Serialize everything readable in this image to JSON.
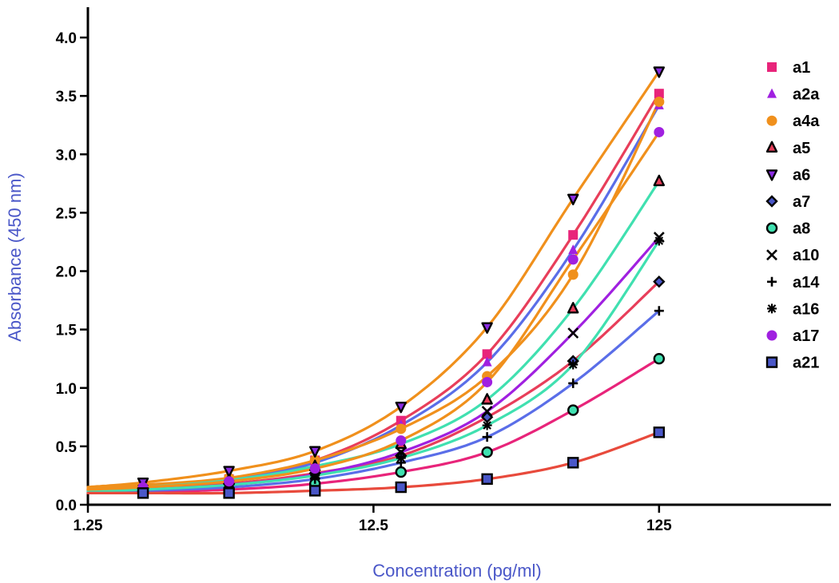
{
  "chart_data": {
    "type": "line",
    "xlabel": "Concentration (pg/ml)",
    "ylabel": "Absorbance (450 nm)",
    "x_scale": "log",
    "xlim": [
      1.25,
      500
    ],
    "ylim": [
      0,
      4.0
    ],
    "x_ticks": [
      1.25,
      12.5,
      125
    ],
    "x_tick_labels": [
      "1.25",
      "12.5",
      "125"
    ],
    "y_ticks": [
      0.0,
      0.5,
      1.0,
      1.5,
      2.0,
      2.5,
      3.0,
      3.5,
      4.0
    ],
    "y_tick_labels": [
      "0.0",
      "0.5",
      "1.0",
      "1.5",
      "2.0",
      "2.5",
      "3.0",
      "3.5",
      "4.0"
    ],
    "grid": false,
    "legend_position": "right",
    "x": [
      1.95,
      3.9,
      7.8,
      15.6,
      31.25,
      62.5,
      125
    ],
    "series": [
      {
        "name": "a1",
        "marker": "square",
        "marker_color": "#e8247a",
        "line_color": "#e83e5a",
        "values": [
          0.16,
          0.22,
          0.38,
          0.72,
          1.29,
          2.31,
          3.52
        ]
      },
      {
        "name": "a2a",
        "marker": "triangle-up",
        "marker_color": "#a020e0",
        "line_color": "#5a6ee8",
        "values": [
          0.15,
          0.21,
          0.36,
          0.68,
          1.22,
          2.18,
          3.42
        ]
      },
      {
        "name": "a4a",
        "marker": "circle",
        "marker_color": "#f0901c",
        "line_color": "#f0901c",
        "values": [
          0.17,
          0.23,
          0.38,
          0.65,
          1.1,
          1.97,
          3.45
        ]
      },
      {
        "name": "a5",
        "marker": "triangle-up-outline",
        "marker_color": "#e83e5a",
        "line_color": "#40e0b0",
        "values": [
          0.15,
          0.21,
          0.33,
          0.52,
          0.9,
          1.68,
          2.77
        ]
      },
      {
        "name": "a6",
        "marker": "triangle-down-outline",
        "marker_color": "#8a2be2",
        "line_color": "#f0901c",
        "values": [
          0.19,
          0.29,
          0.46,
          0.84,
          1.52,
          2.62,
          3.71
        ]
      },
      {
        "name": "a7",
        "marker": "diamond-outline",
        "marker_color": "#4a57c8",
        "line_color": "#e83e5a",
        "values": [
          0.14,
          0.18,
          0.27,
          0.42,
          0.75,
          1.23,
          1.91
        ]
      },
      {
        "name": "a8",
        "marker": "circle-outline",
        "marker_color": "#40e0b0",
        "line_color": "#e8247a",
        "values": [
          0.11,
          0.13,
          0.18,
          0.28,
          0.45,
          0.81,
          1.25
        ]
      },
      {
        "name": "a10",
        "marker": "x",
        "marker_color": "#000000",
        "line_color": "#a020e0",
        "values": [
          0.13,
          0.17,
          0.26,
          0.45,
          0.8,
          1.47,
          2.29
        ]
      },
      {
        "name": "a14",
        "marker": "plus",
        "marker_color": "#000000",
        "line_color": "#5a6ee8",
        "values": [
          0.12,
          0.15,
          0.22,
          0.36,
          0.58,
          1.04,
          1.66
        ]
      },
      {
        "name": "a16",
        "marker": "asterisk",
        "marker_color": "#000000",
        "line_color": "#40e0b0",
        "values": [
          0.13,
          0.17,
          0.25,
          0.4,
          0.68,
          1.2,
          2.26
        ]
      },
      {
        "name": "a17",
        "marker": "circle",
        "marker_color": "#a020e0",
        "line_color": "#f0901c",
        "values": [
          0.15,
          0.2,
          0.31,
          0.55,
          1.05,
          2.1,
          3.19
        ]
      },
      {
        "name": "a21",
        "marker": "square-outline",
        "marker_color": "#4a57c8",
        "line_color": "#e84a3c",
        "values": [
          0.1,
          0.1,
          0.12,
          0.15,
          0.22,
          0.36,
          0.62
        ]
      }
    ]
  }
}
